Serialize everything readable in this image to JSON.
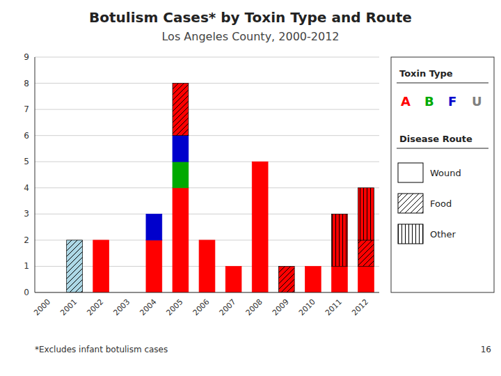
{
  "chart_data": {
    "type": "bar",
    "stacked": true,
    "title": "Botulism Cases* by Toxin Type and Route",
    "subtitle": "Los Angeles County, 2000-2012",
    "categories": [
      "2000",
      "2001",
      "2002",
      "2003",
      "2004",
      "2005",
      "2006",
      "2007",
      "2008",
      "2009",
      "2010",
      "2011",
      "2012"
    ],
    "series": [
      {
        "route": "Wound",
        "values": [
          null,
          null,
          2,
          null,
          2,
          4,
          2,
          1,
          5,
          null,
          1,
          1,
          1
        ],
        "colors": [
          null,
          null,
          "#FF0000",
          null,
          "#FF0000",
          "#FF0000",
          "#FF0000",
          "#FF0000",
          "#FF0000",
          null,
          "#FF0000",
          "#FF0000",
          "#FF0000"
        ]
      },
      {
        "route": "Wound",
        "values": [
          null,
          null,
          null,
          null,
          1,
          1,
          null,
          null,
          null,
          null,
          null,
          null,
          null
        ],
        "colors": [
          null,
          null,
          null,
          null,
          "#0000CC",
          "#00AA00",
          null,
          null,
          null,
          null,
          null,
          null,
          null
        ]
      },
      {
        "route": "Wound",
        "values": [
          null,
          null,
          null,
          null,
          null,
          1,
          null,
          null,
          null,
          null,
          null,
          null,
          null
        ],
        "colors": [
          null,
          null,
          null,
          null,
          null,
          "#0000CC",
          null,
          null,
          null,
          null,
          null,
          null,
          null
        ]
      },
      {
        "route": "Food",
        "values": [
          null,
          2,
          null,
          null,
          null,
          2,
          null,
          null,
          null,
          1,
          null,
          null,
          1
        ],
        "colors": [
          null,
          "#ADD8E6",
          null,
          null,
          null,
          "#FF0000",
          null,
          null,
          null,
          "#FF0000",
          null,
          null,
          "#FF0000"
        ]
      },
      {
        "route": "Other",
        "values": [
          null,
          null,
          null,
          null,
          null,
          null,
          null,
          null,
          null,
          null,
          null,
          2,
          2
        ],
        "colors": [
          null,
          null,
          null,
          null,
          null,
          null,
          null,
          null,
          null,
          null,
          null,
          "#FF0000",
          "#FF0000"
        ]
      }
    ],
    "ylim": [
      0,
      9
    ],
    "yticks": [
      0,
      1,
      2,
      3,
      4,
      5,
      6,
      7,
      8,
      9
    ],
    "grid": true,
    "toxin_legend": {
      "title": "Toxin Type",
      "labels": [
        "A",
        "B",
        "F",
        "U"
      ],
      "colors": [
        "#FF0000",
        "#00AA00",
        "#0000CC",
        "#808080"
      ]
    },
    "route_legend": {
      "title": "Disease Route",
      "labels": [
        "Wound",
        "Food",
        "Other"
      ]
    },
    "footnote": "*Excludes infant botulism cases",
    "page_number": "16"
  }
}
